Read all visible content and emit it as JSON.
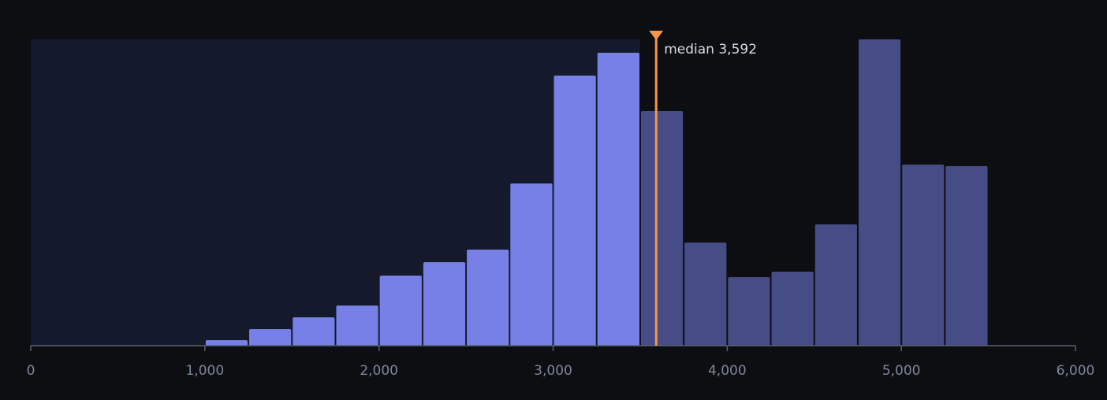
{
  "chart_data": {
    "type": "histogram",
    "bins": [
      0,
      250,
      500,
      750,
      1000,
      1250,
      1500,
      1750,
      2000,
      2250,
      2500,
      2750,
      3000,
      3250,
      3500,
      3750,
      4000,
      4250,
      4500,
      4750,
      5000,
      5250,
      5500,
      5750,
      6000
    ],
    "counts": [
      0,
      0,
      0,
      0.3,
      7,
      21,
      36,
      51,
      89,
      106,
      122,
      206,
      343,
      372,
      298,
      131,
      87,
      94,
      154,
      389,
      230,
      228,
      0,
      0
    ],
    "xlim": [
      0,
      6000
    ],
    "ylim": [
      0,
      389
    ],
    "xticks": [
      0,
      {
        "value": 1000,
        "label": "1,000"
      },
      {
        "value": 2000,
        "label": "2,000"
      },
      {
        "value": 3000,
        "label": "3,000"
      },
      {
        "value": 4000,
        "label": "4,000"
      },
      {
        "value": 5000,
        "label": "5,000"
      },
      {
        "value": 6000,
        "label": "6,000"
      }
    ],
    "median": 3592,
    "median_label": "median 3,592",
    "color_below": "#7780e6",
    "color_above": "#464c85",
    "median_color": "#f5954a"
  }
}
